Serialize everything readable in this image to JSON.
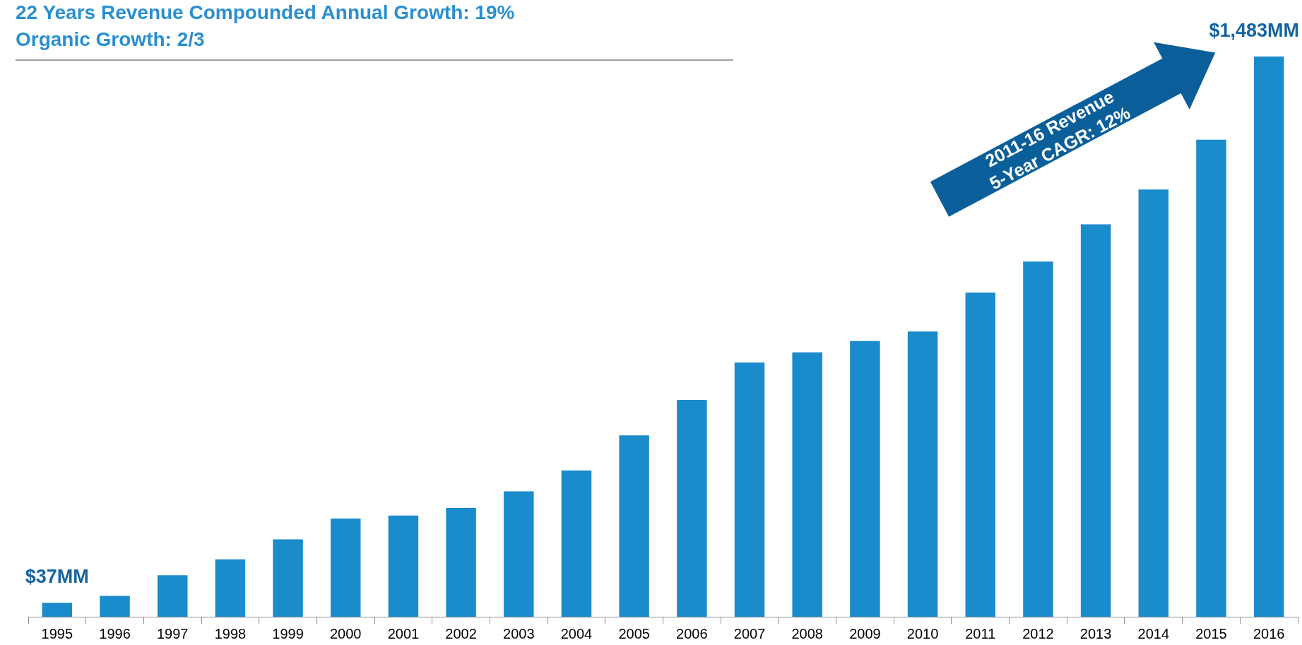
{
  "chart_data": {
    "type": "bar",
    "title": "22 Years Revenue Compounded Annual Growth:  19%",
    "subtitle": "Organic Growth:  2/3",
    "categories": [
      "1995",
      "1996",
      "1997",
      "1998",
      "1999",
      "2000",
      "2001",
      "2002",
      "2003",
      "2004",
      "2005",
      "2006",
      "2007",
      "2008",
      "2009",
      "2010",
      "2011",
      "2012",
      "2013",
      "2014",
      "2015",
      "2016"
    ],
    "values": [
      37,
      55,
      110,
      152,
      205,
      260,
      268,
      288,
      332,
      387,
      480,
      574,
      673,
      700,
      730,
      755,
      858,
      940,
      1039,
      1131,
      1263,
      1483
    ],
    "value_labels": [
      "$37MM",
      null,
      null,
      null,
      null,
      null,
      null,
      null,
      null,
      null,
      null,
      null,
      null,
      null,
      null,
      null,
      null,
      null,
      null,
      null,
      null,
      "$1,483MM"
    ],
    "color": "#1a8bcb",
    "annotations": [
      "2011-16 Revenue\n5-Year CAGR: 12%"
    ],
    "legend": false
  }
}
